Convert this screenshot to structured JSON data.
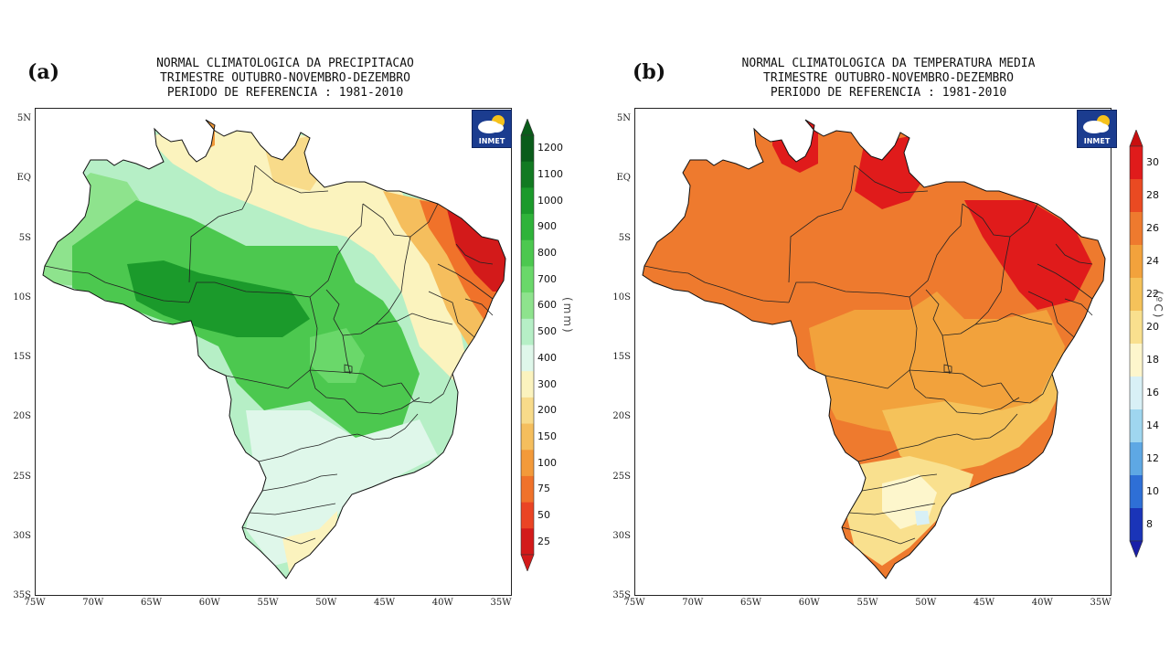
{
  "panels": [
    {
      "id": "a",
      "letter": "(a)",
      "title_lines": [
        "NORMAL CLIMATOLOGICA DA PRECIPITACAO",
        "TRIMESTRE OUTUBRO-NOVEMBRO-DEZEMBRO",
        "PERIODO DE REFERENCIA : 1981-2010"
      ],
      "lat_labels": [
        "5N",
        "EQ",
        "5S",
        "10S",
        "15S",
        "20S",
        "25S",
        "30S",
        "35S"
      ],
      "lon_labels": [
        "75W",
        "70W",
        "65W",
        "60W",
        "55W",
        "50W",
        "45W",
        "40W",
        "35W"
      ],
      "logo_text": "INMET",
      "colorbar": {
        "unit": "(mm)",
        "labels": [
          "1200",
          "1100",
          "1000",
          "900",
          "800",
          "700",
          "600",
          "500",
          "400",
          "300",
          "200",
          "150",
          "100",
          "75",
          "50",
          "25"
        ],
        "colors": [
          "#0a5c1a",
          "#127a22",
          "#1b9a2b",
          "#2fb33a",
          "#4cc84f",
          "#6ad86a",
          "#8ee38d",
          "#b6efc6",
          "#dff7ea",
          "#fbf3be",
          "#f8db8a",
          "#f5be5d",
          "#f39a3a",
          "#f0722a",
          "#ea4424",
          "#d31a1a"
        ],
        "top_color": "#0a5c1a",
        "bottom_color": "#d31a1a"
      }
    },
    {
      "id": "b",
      "letter": "(b)",
      "title_lines": [
        "NORMAL CLIMATOLOGICA DA TEMPERATURA MEDIA",
        "TRIMESTRE OUTUBRO-NOVEMBRO-DEZEMBRO",
        "PERIODO DE REFERENCIA : 1981-2010"
      ],
      "lat_labels": [
        "5N",
        "EQ",
        "5S",
        "10S",
        "15S",
        "20S",
        "25S",
        "30S",
        "35S"
      ],
      "lon_labels": [
        "75W",
        "70W",
        "65W",
        "60W",
        "55W",
        "50W",
        "45W",
        "40W",
        "35W"
      ],
      "logo_text": "INMET",
      "colorbar": {
        "unit": "(ºC)",
        "labels": [
          "30",
          "28",
          "26",
          "24",
          "22",
          "20",
          "18",
          "16",
          "14",
          "12",
          "10",
          "8"
        ],
        "colors": [
          "#e01b1b",
          "#ea4a22",
          "#ee7a2e",
          "#f2a23c",
          "#f5c25a",
          "#f9e08e",
          "#fdf6cc",
          "#d8f0f6",
          "#9fd6ef",
          "#5ea8e4",
          "#2e6fd6",
          "#1a34b8"
        ],
        "top_color": "#c80f0f",
        "bottom_color": "#1a1fa8"
      }
    }
  ],
  "regions_a": {
    "base": "#b6efc6",
    "north_coast": "#fbf3be",
    "amapa": "#f8db8a",
    "roraima_top": "#f39a3a",
    "northeast": "#f5be5d",
    "ne_core": "#f0722a",
    "ne_extreme": "#d31a1a",
    "center_west": "#4cc84f",
    "wet_core": "#1b9a2b",
    "goias": "#6ad86a",
    "south": "#dff7ea",
    "southern_tip": "#fbf3be",
    "amazon_west": "#8ee38d"
  },
  "regions_b": {
    "base": "#ee7a2e",
    "north_hot": "#e01b1b",
    "ne_hot": "#e01b1b",
    "center": "#f2a23c",
    "southeast": "#f5c25a",
    "south": "#f9e08e",
    "south_cool": "#fdf6cc",
    "lagoon": "#d8f0f6"
  }
}
